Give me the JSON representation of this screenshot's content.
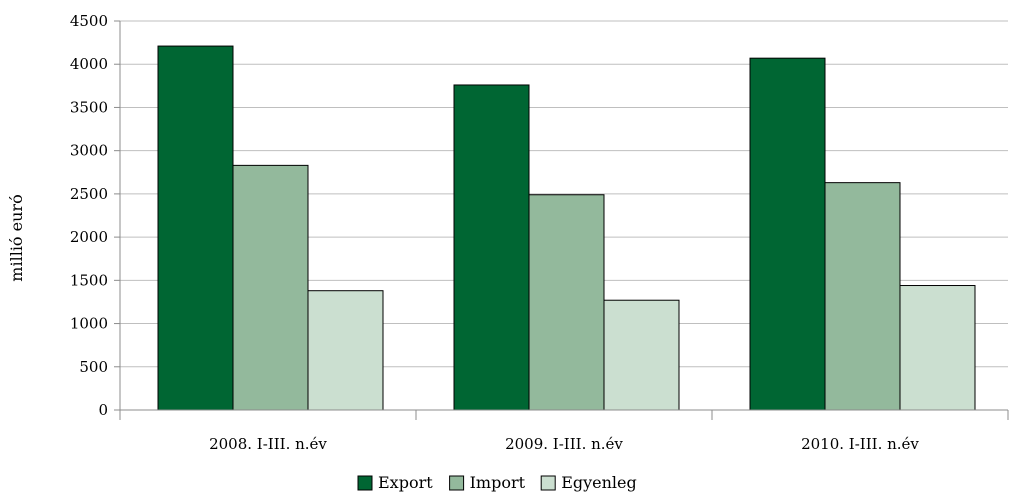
{
  "chart_data": {
    "type": "bar",
    "title": "",
    "xlabel": "",
    "ylabel": "millió euró",
    "ylim": [
      0,
      4500
    ],
    "ytick_step": 500,
    "grid": true,
    "legend_position": "bottom",
    "categories": [
      "2008. I-III. n.év",
      "2009. I-III. n.év",
      "2010. I-III. n.év"
    ],
    "series": [
      {
        "name": "Export",
        "color": "#006633",
        "values": [
          4210,
          3760,
          4070
        ]
      },
      {
        "name": "Import",
        "color": "#93b99c",
        "values": [
          2830,
          2490,
          2630
        ]
      },
      {
        "name": "Egyenleg",
        "color": "#cbdfd0",
        "values": [
          1380,
          1270,
          1440
        ]
      }
    ]
  }
}
